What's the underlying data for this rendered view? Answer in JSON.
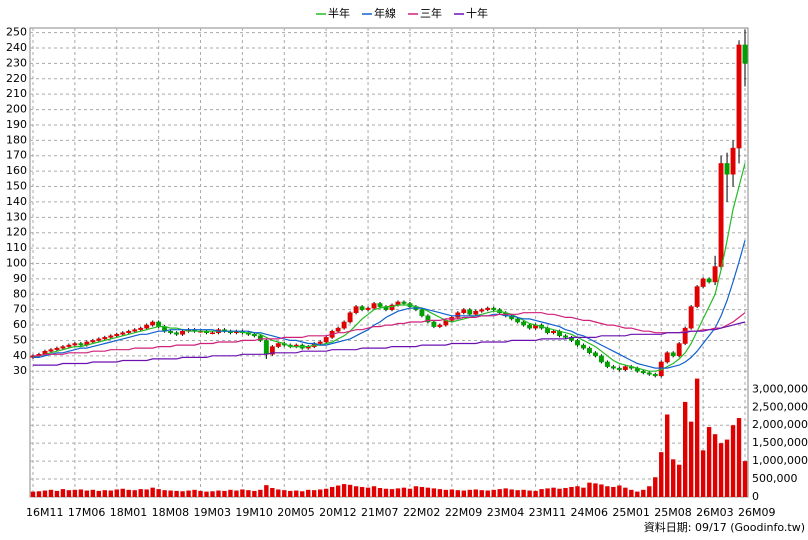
{
  "chart_data": {
    "type": "candlestick",
    "legend": "top",
    "grid": true,
    "annotation": "資料日期: 09/17 (Goodinfo.tw)",
    "up_color": "#e00000",
    "down_color": "#00a000",
    "categories": [
      "16M11",
      null,
      null,
      null,
      null,
      null,
      null,
      "17M06",
      null,
      null,
      null,
      null,
      null,
      null,
      "18M01",
      null,
      null,
      null,
      null,
      null,
      null,
      "18M08",
      null,
      null,
      null,
      null,
      null,
      null,
      "19M03",
      null,
      null,
      null,
      null,
      null,
      null,
      "19M10",
      null,
      null,
      null,
      null,
      null,
      null,
      "20M05",
      null,
      null,
      null,
      null,
      null,
      null,
      "20M12",
      null,
      null,
      null,
      null,
      null,
      null,
      "21M07",
      null,
      null,
      null,
      null,
      null,
      null,
      "22M02",
      null,
      null,
      null,
      null,
      null,
      null,
      "22M09",
      null,
      null,
      null,
      null,
      null,
      null,
      "23M04",
      null,
      null,
      null,
      null,
      null,
      null,
      "23M11",
      null,
      null,
      null,
      null,
      null,
      null,
      "24M06",
      null,
      null,
      null,
      null,
      null,
      null,
      "25M01",
      null,
      null,
      null,
      null,
      null,
      null,
      "25M08",
      null,
      null,
      null,
      null,
      null,
      null,
      "26M03",
      null,
      null,
      null,
      null,
      null,
      null,
      "26M09"
    ],
    "open": [
      39,
      40,
      41,
      43,
      44,
      45,
      46,
      47,
      48,
      47,
      49,
      50,
      51,
      52,
      53,
      54,
      55,
      56,
      57,
      58,
      60,
      62,
      59,
      56,
      55,
      54,
      56,
      57,
      56,
      56,
      55,
      55,
      57,
      56,
      55,
      56,
      55,
      54,
      53,
      50,
      41,
      46,
      48,
      47,
      46,
      47,
      45,
      46,
      48,
      49,
      52,
      56,
      58,
      62,
      68,
      72,
      70,
      71,
      74,
      72,
      70,
      73,
      75,
      74,
      72,
      70,
      66,
      62,
      59,
      60,
      63,
      65,
      68,
      70,
      67,
      69,
      70,
      71,
      70,
      68,
      66,
      64,
      62,
      60,
      58,
      60,
      58,
      55,
      56,
      53,
      52,
      50,
      47,
      45,
      42,
      40,
      36,
      33,
      32,
      31,
      33,
      32,
      30,
      29,
      28,
      27,
      36,
      42,
      40,
      48,
      58,
      72,
      85,
      90,
      88,
      98,
      165,
      158,
      175,
      242
    ],
    "high": [
      41,
      42,
      44,
      45,
      46,
      47,
      48,
      49,
      49,
      50,
      51,
      52,
      53,
      54,
      55,
      56,
      57,
      58,
      59,
      61,
      63,
      63,
      60,
      57,
      56,
      57,
      58,
      58,
      57,
      57,
      56,
      58,
      58,
      57,
      57,
      57,
      56,
      55,
      54,
      51,
      47,
      49,
      49,
      48,
      48,
      48,
      47,
      49,
      50,
      53,
      57,
      59,
      63,
      69,
      73,
      73,
      72,
      75,
      75,
      73,
      74,
      76,
      76,
      75,
      73,
      71,
      67,
      63,
      61,
      64,
      66,
      69,
      71,
      71,
      70,
      71,
      72,
      72,
      71,
      69,
      67,
      65,
      63,
      61,
      61,
      61,
      59,
      57,
      57,
      54,
      53,
      51,
      48,
      46,
      43,
      41,
      37,
      34,
      33,
      34,
      34,
      33,
      31,
      30,
      29,
      37,
      43,
      43,
      49,
      59,
      73,
      86,
      91,
      91,
      105,
      170,
      172,
      180,
      245,
      252
    ],
    "low": [
      38,
      39,
      40,
      42,
      43,
      44,
      45,
      46,
      46,
      46,
      48,
      49,
      50,
      51,
      52,
      53,
      54,
      55,
      56,
      57,
      59,
      58,
      55,
      54,
      53,
      53,
      55,
      55,
      55,
      54,
      54,
      54,
      55,
      54,
      54,
      54,
      53,
      52,
      49,
      38,
      40,
      45,
      46,
      45,
      45,
      44,
      44,
      45,
      47,
      48,
      51,
      55,
      57,
      61,
      67,
      69,
      69,
      70,
      71,
      69,
      69,
      72,
      73,
      71,
      69,
      65,
      61,
      58,
      58,
      59,
      62,
      64,
      67,
      66,
      66,
      68,
      69,
      69,
      67,
      65,
      63,
      61,
      59,
      57,
      57,
      57,
      54,
      54,
      52,
      51,
      49,
      46,
      44,
      41,
      39,
      35,
      32,
      31,
      30,
      30,
      31,
      29,
      28,
      27,
      26,
      26,
      35,
      39,
      39,
      47,
      57,
      71,
      84,
      87,
      86,
      96,
      140,
      150,
      165,
      215
    ],
    "close": [
      40,
      41,
      43,
      44,
      45,
      46,
      47,
      48,
      47,
      49,
      50,
      51,
      52,
      53,
      54,
      55,
      56,
      57,
      58,
      60,
      62,
      59,
      56,
      55,
      54,
      56,
      57,
      56,
      56,
      55,
      55,
      57,
      56,
      55,
      56,
      55,
      54,
      53,
      50,
      41,
      46,
      48,
      47,
      46,
      47,
      45,
      46,
      48,
      49,
      52,
      56,
      58,
      62,
      68,
      72,
      70,
      71,
      74,
      72,
      70,
      73,
      75,
      74,
      72,
      70,
      66,
      62,
      59,
      60,
      63,
      65,
      68,
      70,
      67,
      69,
      70,
      71,
      70,
      68,
      66,
      64,
      62,
      60,
      58,
      60,
      58,
      55,
      56,
      53,
      52,
      50,
      47,
      45,
      42,
      40,
      36,
      33,
      32,
      31,
      33,
      32,
      30,
      29,
      28,
      27,
      36,
      42,
      40,
      48,
      58,
      72,
      85,
      90,
      88,
      98,
      165,
      158,
      175,
      242,
      230
    ],
    "series": [
      {
        "name": "半年",
        "color": "#22bb22",
        "values": [
          39,
          40,
          41,
          42,
          43,
          44,
          45,
          46,
          46,
          47,
          48,
          49,
          50,
          51,
          52,
          53,
          54,
          55,
          56,
          57,
          58,
          59,
          59,
          58,
          58,
          57,
          56,
          56,
          56,
          56,
          56,
          56,
          56,
          56,
          56,
          55,
          55,
          55,
          54,
          52,
          50,
          49,
          48,
          46,
          46,
          46,
          46,
          47,
          47,
          48,
          49,
          51,
          53,
          56,
          60,
          64,
          67,
          70,
          71,
          72,
          72,
          73,
          73,
          73,
          72,
          71,
          69,
          67,
          65,
          63,
          62,
          63,
          64,
          65,
          66,
          67,
          68,
          69,
          69,
          68,
          67,
          65,
          63,
          61,
          60,
          59,
          58,
          57,
          56,
          55,
          54,
          52,
          50,
          48,
          46,
          43,
          40,
          37,
          35,
          34,
          33,
          32,
          31,
          30,
          30,
          31,
          33,
          35,
          38,
          42,
          48,
          56,
          64,
          72,
          80,
          96,
          115,
          135,
          150,
          165
        ]
      },
      {
        "name": "年線",
        "color": "#1060d0",
        "values": [
          39,
          39,
          40,
          41,
          42,
          42,
          43,
          44,
          45,
          45,
          46,
          47,
          48,
          49,
          50,
          51,
          52,
          53,
          54,
          54,
          55,
          56,
          56,
          57,
          57,
          57,
          57,
          57,
          57,
          57,
          57,
          56,
          56,
          56,
          56,
          56,
          56,
          55,
          55,
          54,
          53,
          52,
          51,
          50,
          50,
          49,
          48,
          48,
          47,
          47,
          48,
          49,
          50,
          51,
          53,
          55,
          57,
          60,
          62,
          65,
          67,
          69,
          70,
          71,
          71,
          71,
          70,
          69,
          68,
          67,
          66,
          66,
          66,
          66,
          66,
          66,
          66,
          67,
          67,
          66,
          66,
          65,
          64,
          64,
          63,
          62,
          61,
          60,
          59,
          57,
          56,
          54,
          53,
          51,
          49,
          47,
          45,
          43,
          41,
          39,
          37,
          35,
          34,
          33,
          32,
          32,
          32,
          33,
          34,
          36,
          39,
          43,
          48,
          53,
          58,
          66,
          76,
          88,
          101,
          115
        ]
      },
      {
        "name": "三年",
        "color": "#d0207a",
        "values": [
          40,
          40,
          41,
          41,
          41,
          41,
          42,
          42,
          42,
          42,
          43,
          43,
          43,
          44,
          44,
          44,
          44,
          45,
          45,
          45,
          45,
          46,
          46,
          46,
          47,
          47,
          47,
          47,
          48,
          48,
          48,
          49,
          49,
          49,
          49,
          50,
          50,
          50,
          51,
          51,
          51,
          51,
          52,
          52,
          52,
          52,
          53,
          53,
          53,
          53,
          54,
          55,
          55,
          56,
          57,
          57,
          58,
          59,
          59,
          60,
          60,
          61,
          61,
          62,
          62,
          62,
          63,
          63,
          63,
          64,
          64,
          64,
          65,
          65,
          65,
          66,
          66,
          66,
          67,
          67,
          67,
          67,
          68,
          68,
          68,
          68,
          67,
          67,
          66,
          65,
          65,
          64,
          63,
          63,
          62,
          61,
          60,
          60,
          59,
          58,
          58,
          57,
          56,
          56,
          55,
          55,
          55,
          55,
          55,
          56,
          56,
          56,
          57,
          57,
          58,
          58,
          60,
          62,
          65,
          68
        ]
      },
      {
        "name": "十年",
        "color": "#6a10b0",
        "values": [
          34,
          34,
          34,
          34,
          34,
          35,
          35,
          35,
          35,
          35,
          36,
          36,
          36,
          36,
          36,
          37,
          37,
          37,
          37,
          37,
          38,
          38,
          38,
          38,
          38,
          39,
          39,
          39,
          39,
          39,
          40,
          40,
          40,
          40,
          40,
          41,
          41,
          41,
          41,
          41,
          42,
          42,
          42,
          42,
          42,
          43,
          43,
          43,
          43,
          43,
          44,
          44,
          44,
          44,
          44,
          45,
          45,
          45,
          45,
          45,
          46,
          46,
          46,
          46,
          46,
          47,
          47,
          47,
          47,
          47,
          48,
          48,
          48,
          48,
          48,
          49,
          49,
          49,
          49,
          49,
          50,
          50,
          50,
          50,
          50,
          51,
          51,
          51,
          51,
          51,
          52,
          52,
          52,
          52,
          52,
          53,
          53,
          53,
          53,
          53,
          54,
          54,
          54,
          54,
          54,
          54,
          55,
          55,
          55,
          55,
          56,
          56,
          56,
          57,
          57,
          58,
          59,
          60,
          61,
          62
        ]
      }
    ],
    "ylim": [
      23,
      253
    ],
    "yticks": [
      30,
      40,
      50,
      60,
      70,
      80,
      90,
      100,
      110,
      120,
      130,
      140,
      150,
      160,
      170,
      180,
      190,
      200,
      210,
      220,
      230,
      240,
      250
    ],
    "volume": {
      "color": "#e00000",
      "ylim": [
        0,
        3400000
      ],
      "yticks": [
        0,
        {
          "value": 500000,
          "label": "500,000"
        },
        {
          "value": 1000000,
          "label": "1,000,000"
        },
        {
          "value": 1500000,
          "label": "1,500,000"
        },
        {
          "value": 2000000,
          "label": "2,000,000"
        },
        {
          "value": 2500000,
          "label": "2,500,000"
        },
        {
          "value": 3000000,
          "label": "3,000,000"
        }
      ],
      "values": [
        150000,
        160000,
        180000,
        200000,
        170000,
        220000,
        190000,
        200000,
        210000,
        180000,
        200000,
        170000,
        190000,
        180000,
        210000,
        230000,
        200000,
        190000,
        220000,
        210000,
        260000,
        220000,
        190000,
        180000,
        170000,
        160000,
        180000,
        200000,
        170000,
        150000,
        160000,
        180000,
        170000,
        200000,
        180000,
        210000,
        190000,
        170000,
        200000,
        330000,
        250000,
        210000,
        190000,
        170000,
        180000,
        160000,
        200000,
        190000,
        210000,
        230000,
        280000,
        320000,
        360000,
        340000,
        300000,
        280000,
        260000,
        300000,
        250000,
        230000,
        220000,
        240000,
        260000,
        230000,
        300000,
        280000,
        260000,
        240000,
        220000,
        200000,
        210000,
        190000,
        180000,
        200000,
        210000,
        190000,
        180000,
        200000,
        220000,
        240000,
        210000,
        190000,
        200000,
        180000,
        170000,
        220000,
        240000,
        260000,
        230000,
        250000,
        280000,
        300000,
        260000,
        400000,
        380000,
        350000,
        300000,
        280000,
        320000,
        260000,
        200000,
        150000,
        200000,
        300000,
        550000,
        1250000,
        2300000,
        1050000,
        900000,
        2650000,
        2100000,
        3300000,
        1300000,
        1950000,
        1750000,
        1500000,
        1600000,
        2000000,
        2200000,
        1000000
      ]
    }
  }
}
